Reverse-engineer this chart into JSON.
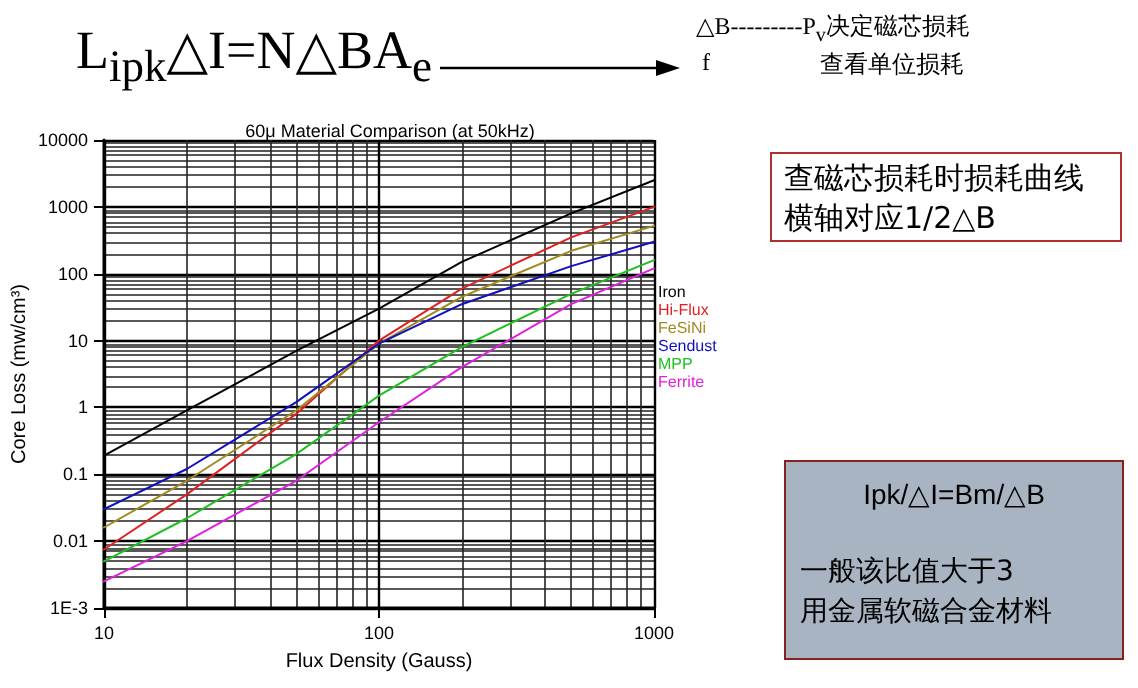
{
  "chart_data": {
    "type": "line",
    "title": "60μ Material Comparison (at 50kHz)",
    "xlabel": "Flux Density (Gauss)",
    "ylabel": "Core Loss (mw/cm³)",
    "annotations": [
      "L$_{ipk}$△I=N△BA$_{e}$",
      "△B---------P$_{v}$决定磁芯损耗",
      "f",
      "查看单位损耗",
      "查磁芯损耗时损耗曲线",
      "横轴对应1/2△B",
      "Ipk/△I=Bm/△B",
      "一般该比值大于3",
      "用金属软磁合金材料"
    ],
    "x": [
      10,
      20,
      50,
      100,
      200,
      500,
      1000
    ],
    "series": [
      {
        "name": "Iron",
        "color": "#000000",
        "values": [
          0.19,
          0.9,
          7,
          30,
          150,
          800,
          2500
        ]
      },
      {
        "name": "Hi-Flux",
        "color": "#e02020",
        "values": [
          0.0075,
          0.05,
          0.8,
          10,
          60,
          350,
          1000
        ]
      },
      {
        "name": "FeSiNi",
        "color": "#a08a20",
        "values": [
          0.016,
          0.08,
          0.9,
          9,
          45,
          220,
          520
        ]
      },
      {
        "name": "Sendust",
        "color": "#1010c0",
        "values": [
          0.03,
          0.12,
          1.2,
          9,
          35,
          130,
          300
        ]
      },
      {
        "name": "MPP",
        "color": "#20c020",
        "values": [
          0.005,
          0.022,
          0.2,
          1.5,
          8,
          50,
          160
        ]
      },
      {
        "name": "Ferrite",
        "color": "#e020e0",
        "values": [
          0.0025,
          0.01,
          0.08,
          0.6,
          4,
          35,
          120
        ]
      }
    ],
    "xlim": [
      10,
      1000
    ],
    "xticks": [
      10,
      100,
      1000
    ],
    "ylim": [
      0.001,
      10000
    ],
    "yticks": [
      {
        "value": 0.001,
        "label": "1E-3"
      },
      0.01,
      0.1,
      1,
      10,
      100,
      1000,
      10000
    ],
    "log": "xy",
    "grid": true,
    "legend": "right",
    "marker": "none",
    "line_style": "solid"
  }
}
